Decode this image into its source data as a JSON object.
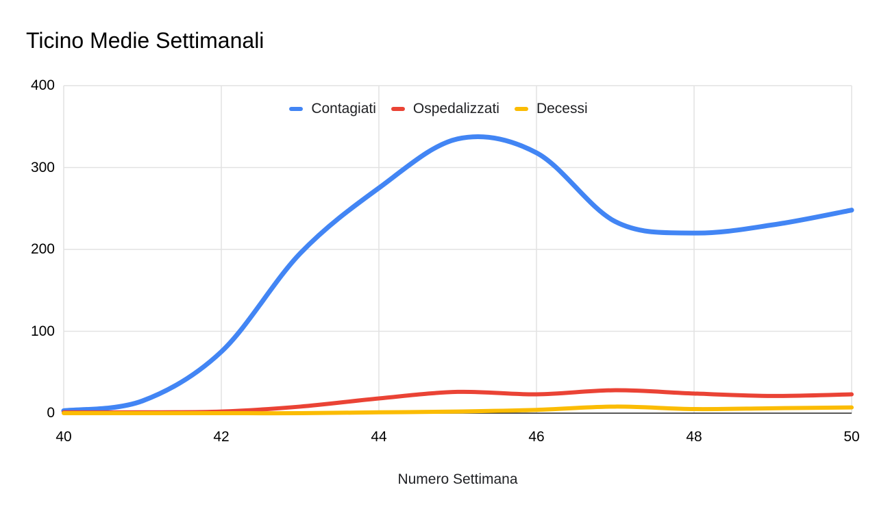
{
  "chart_data": {
    "type": "line",
    "smooth": true,
    "title": "Ticino Medie Settimanali",
    "xlabel": "Numero Settimana",
    "ylabel": "",
    "x": [
      40,
      41,
      42,
      43,
      44,
      45,
      46,
      47,
      48,
      49,
      50
    ],
    "xlim": [
      40,
      50
    ],
    "ylim": [
      0,
      400
    ],
    "x_tick_values": [
      40,
      42,
      44,
      46,
      48,
      50
    ],
    "y_tick_values": [
      0,
      100,
      200,
      300,
      400
    ],
    "grid": true,
    "legend_position": "top-center",
    "gridline_color": "#e2e2e2",
    "axis_line_color": "#212121",
    "series": [
      {
        "name": "Contagiati",
        "color": "#4285F4",
        "values": [
          3,
          15,
          75,
          195,
          275,
          335,
          318,
          234,
          220,
          230,
          248
        ]
      },
      {
        "name": "Ospedalizzati",
        "color": "#EA4335",
        "values": [
          1,
          1,
          2,
          8,
          18,
          26,
          23,
          28,
          24,
          21,
          23
        ]
      },
      {
        "name": "Decessi",
        "color": "#FBBC04",
        "values": [
          0,
          0,
          0,
          0,
          1,
          2,
          4,
          8,
          5,
          6,
          7
        ]
      }
    ]
  }
}
